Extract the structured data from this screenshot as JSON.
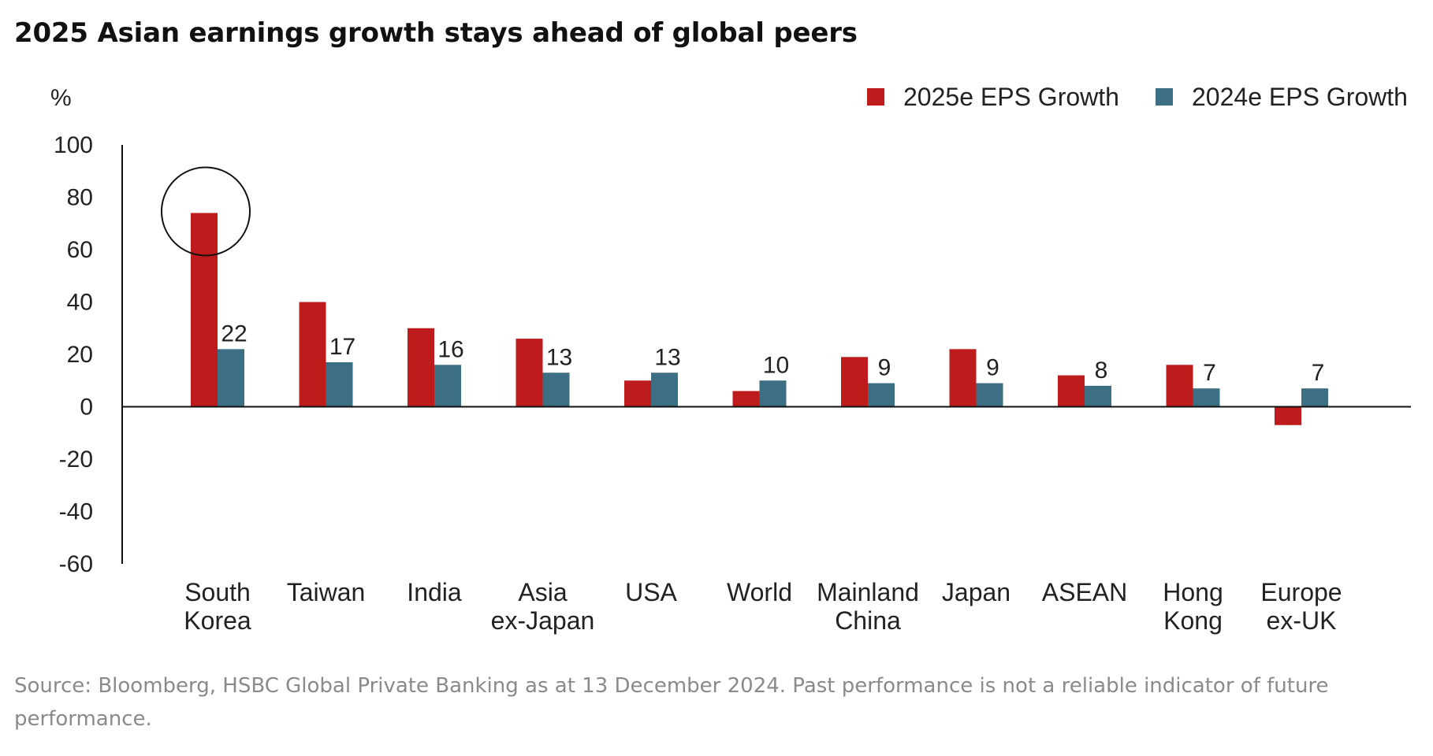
{
  "colors": {
    "series_2025": "#be1c1c",
    "series_2024": "#3c6e84",
    "axis": "#111111",
    "text": "#222222",
    "note": "#8a8a8a"
  },
  "chart_data": {
    "type": "bar",
    "title": "2025 Asian earnings growth stays ahead of global peers",
    "ylabel": "%",
    "xlabel": "",
    "ylim": [
      -60,
      100
    ],
    "yticks": [
      100,
      80,
      60,
      40,
      20,
      0,
      -20,
      -40,
      -60
    ],
    "legend_position": "top-right",
    "grid": false,
    "categories": [
      [
        "South",
        "Korea"
      ],
      [
        "Taiwan"
      ],
      [
        "India"
      ],
      [
        "Asia",
        "ex-Japan"
      ],
      [
        "USA"
      ],
      [
        "World"
      ],
      [
        "Mainland",
        "China"
      ],
      [
        "Japan"
      ],
      [
        "ASEAN"
      ],
      [
        "Hong",
        "Kong"
      ],
      [
        "Europe",
        "ex-UK"
      ]
    ],
    "series": [
      {
        "name": "2025e EPS Growth",
        "color_key": "series_2025",
        "values": [
          74,
          40,
          30,
          26,
          10,
          6,
          19,
          22,
          12,
          16,
          -7
        ],
        "labeled": false
      },
      {
        "name": "2024e EPS Growth",
        "color_key": "series_2024",
        "values": [
          22,
          17,
          16,
          13,
          13,
          10,
          9,
          9,
          8,
          7,
          7
        ],
        "labeled": true
      }
    ],
    "annotations": [
      {
        "type": "circle",
        "category_index": 0,
        "series_index": 0,
        "note": "highlight South Korea 2025e"
      }
    ]
  },
  "footer": {
    "source": "Source: Bloomberg, HSBC Global Private Banking as at 13 December 2024. Past performance is not a reliable indicator of future performance."
  }
}
